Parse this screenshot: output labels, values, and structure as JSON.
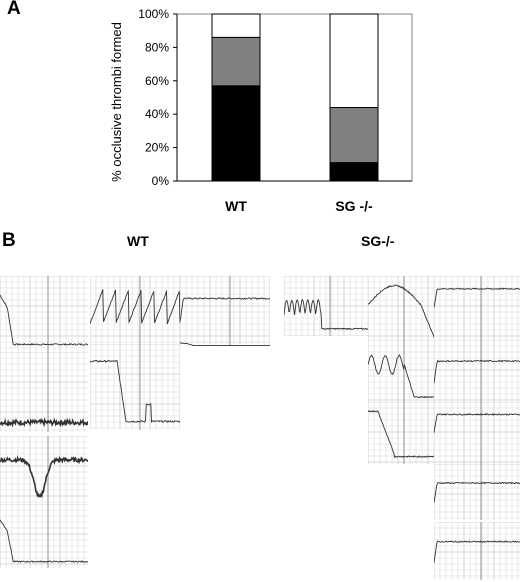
{
  "figure": {
    "panel_a_label": "A",
    "panel_b_label": "B",
    "panel_b_groups": [
      "WT",
      "SG-/-"
    ]
  },
  "chart_data": {
    "type": "bar",
    "stacked": true,
    "categories": [
      "WT",
      "SG -/-"
    ],
    "series": [
      {
        "color": "#000000",
        "values": [
          57,
          11
        ]
      },
      {
        "color": "#808080",
        "values": [
          29,
          33
        ]
      },
      {
        "color": "#ffffff",
        "values": [
          14,
          56
        ]
      }
    ],
    "ylabel": "% occlusive thrombi formed",
    "ylim": [
      0,
      100
    ],
    "yticks": [
      "0%",
      "20%",
      "40%",
      "60%",
      "80%",
      "100%"
    ],
    "grid": false,
    "legend": "none"
  },
  "traces": {
    "wt": [
      {
        "shape": "drop_low"
      },
      {
        "shape": "noisy_flat_low"
      },
      {
        "shape": "plateau_mid"
      },
      {
        "shape": "sawtooth"
      },
      {
        "shape": "drop_spikes"
      },
      {
        "shape": "dip_noisy"
      },
      {
        "shape": "drop_low"
      },
      {
        "shape": "drop_low"
      }
    ],
    "sg": [
      {
        "shape": "spiky_drop"
      },
      {
        "shape": "arc_drop"
      },
      {
        "shape": "plateau_high"
      },
      {
        "shape": "noisy_drop"
      },
      {
        "shape": "plateau_mid"
      },
      {
        "shape": "step_drop"
      },
      {
        "shape": "plateau_high"
      },
      {
        "shape": "plateau_mid"
      },
      {
        "shape": "plateau_mid"
      }
    ]
  }
}
